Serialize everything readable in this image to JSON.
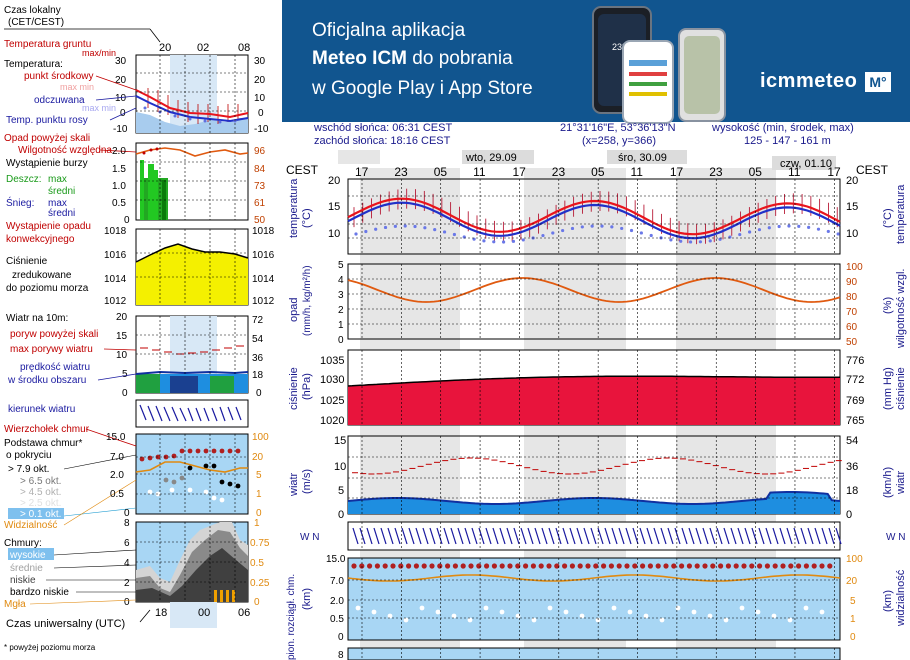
{
  "legend": {
    "time_local": "Czas lokalny",
    "time_local_zone": "(CET/CEST)",
    "time_local_ticks": [
      "20",
      "02",
      "08"
    ],
    "temp_ground": "Temperatura gruntu",
    "temp_ground_maxmin": "max/min",
    "temperature": "Temperatura:",
    "temp_center": "punkt środkowy",
    "temp_max_faded": "max min",
    "temp_feel": "odczuwana",
    "temp_feel_faded": "max min",
    "dew_point": "Temp. punktu rosy",
    "temp_ticks_left": [
      "30",
      "20",
      "10",
      "0",
      "-10"
    ],
    "temp_ticks_right": [
      "30",
      "20",
      "10",
      "0",
      "-10"
    ],
    "precip_over": "Opad powyżej skali",
    "humidity": "Wilgotność względna",
    "storm": "Wystąpienie burzy",
    "rain": "Deszcz:",
    "rain_max": "max",
    "rain_avg": "średni",
    "snow": "Śnieg:",
    "snow_max": "max",
    "snow_avg": "średni",
    "precip_occ": "Wystąpienie opadu",
    "precip_occ2": "konwekcyjnego",
    "precip_ticks_left": [
      "2.0",
      "1.5",
      "1.0",
      "0.5",
      "0"
    ],
    "precip_ticks_right": [
      "96",
      "84",
      "73",
      "61",
      "50"
    ],
    "pressure_title": "Ciśnienie",
    "pressure_line2": "zredukowane",
    "pressure_line3": "do poziomu morza",
    "pressure_ticks": [
      "1018",
      "1016",
      "1014",
      "1012"
    ],
    "wind_title": "Wiatr na 10m:",
    "gust_over": "poryw powyżej skali",
    "gust_max": "max porywy wiatru",
    "wind_speed": "prędkość wiatru",
    "wind_speed2": "w środku obszaru",
    "wind_ticks_left": [
      "20",
      "15",
      "10",
      "5",
      "0"
    ],
    "wind_ticks_right": [
      "72",
      "54",
      "36",
      "18",
      "0"
    ],
    "wind_dir": "kierunek wiatru",
    "cloud_top": "Wierzchołek chmur",
    "cloud_base": "Podstawa chmur*",
    "cloud_base2": "o pokryciu",
    "cov1": "> 7.9 okt.",
    "cov2": "> 6.5 okt.",
    "cov3": "> 4.5 okt.",
    "cov4": "> 2.5 okt.",
    "cov5": "> 0.1 okt.",
    "cloud_ticks_left": [
      "15.0",
      "7.0",
      "2.0",
      "0.5",
      "0"
    ],
    "cloud_ticks_right": [
      "100",
      "20",
      "5",
      "1",
      "0"
    ],
    "visibility": "Widzialność",
    "clouds": "Chmury:",
    "cl_high": "wysokie",
    "cl_mid": "średnie",
    "cl_low": "niskie",
    "cl_vlow": "bardzo niskie",
    "fog": "Mgła",
    "clouds_ticks_left": [
      "6",
      "4",
      "2",
      "0",
      "8"
    ],
    "clouds_ticks_right": [
      "0.75",
      "0.5",
      "0.25",
      "0",
      "1"
    ],
    "utc": "Czas uniwersalny (UTC)",
    "utc_ticks": [
      "18",
      "00",
      "06"
    ],
    "footnote": "* powyżej poziomu morza"
  },
  "banner": {
    "line1": "Oficjalna aplikacja",
    "line2_bold": "Meteo ICM",
    "line2_rest": " do pobrania",
    "line3": "w Google Play i App Store",
    "logo_text": "icmmeteo",
    "logo_badge": "M°",
    "phone_temp": "23°"
  },
  "meta": {
    "sunrise": "wschód słońca: 06:31 CEST",
    "sunset": "zachód słońca: 18:16 CEST",
    "coords": "21°31'16\"E, 53°36'13\"N",
    "grid": "(x=258,  y=366)",
    "elev_label": "wysokość (min, środek, max)",
    "elev_values": "125 - 147 - 161 m"
  },
  "main": {
    "zone_left": "CEST",
    "zone_right": "CEST",
    "days": [
      "wto, 29.09",
      "śro, 30.09",
      "czw, 01.10"
    ],
    "hours": [
      "17",
      "23",
      "05",
      "11",
      "17",
      "23",
      "05",
      "11",
      "17",
      "23",
      "05",
      "11",
      "17"
    ],
    "temp_axis_left": "temperatura",
    "temp_axis_left_unit": "(°C)",
    "temp_axis_right": "temperatura",
    "temp_axis_right_unit": "(°C)",
    "temp_ticks": [
      "20",
      "15",
      "10"
    ],
    "precip_axis_left": "opad",
    "precip_axis_left_unit": "(mm/h, kg/m²/h)",
    "precip_axis_right": "wilgotność wzgl.",
    "precip_axis_right_unit": "(%)",
    "precip_ticks_left": [
      "5",
      "4",
      "3",
      "2",
      "1",
      "0"
    ],
    "precip_ticks_right": [
      "100",
      "90",
      "80",
      "70",
      "60",
      "50"
    ],
    "press_axis_left": "ciśnienie",
    "press_axis_left_unit": "(hPa)",
    "press_axis_right": "ciśnienie",
    "press_axis_right_unit": "(mm Hg)",
    "press_ticks_left": [
      "1035",
      "1030",
      "1025",
      "1020"
    ],
    "press_ticks_right": [
      "776",
      "772",
      "769",
      "765"
    ],
    "wind_axis_left": "wiatr",
    "wind_axis_left_unit": "(m/s)",
    "wind_axis_right": "wiatr",
    "wind_axis_right_unit": "(km/h)",
    "wind_ticks_left": [
      "15",
      "10",
      "5",
      "0"
    ],
    "wind_ticks_right": [
      "54",
      "36",
      "18",
      "0"
    ],
    "dir_label_left": "W N",
    "dir_label_right": "W N",
    "cloud_axis_left": "pion. rozciągł. chm.",
    "cloud_axis_left_unit": "(km)",
    "cloud_axis_right": "widzialność",
    "cloud_axis_right_unit": "(km)",
    "cloud_ticks_left": [
      "15.0",
      "7.0",
      "2.0",
      "0.5",
      "0"
    ],
    "cloud_ticks_right": [
      "100",
      "20",
      "5",
      "1",
      "0"
    ],
    "bottom_tick": "8"
  },
  "colors": {
    "banner_bg": "#11558f",
    "temp_red": "#e8141c",
    "temp_blue": "#2030c8",
    "humidity_orange": "#e05a10",
    "pressure_fill": "#e8143c",
    "wind_fill": "#1e8ee0",
    "sky": "#a8d6f4",
    "rain_green": "#22a822",
    "pressure_yellow": "#f4f000"
  }
}
